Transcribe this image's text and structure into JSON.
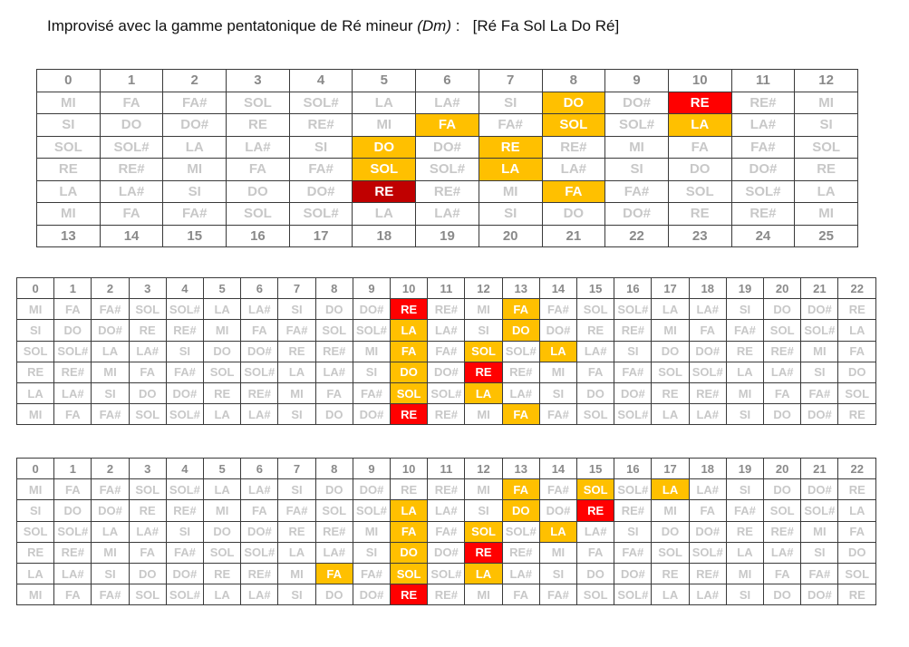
{
  "title": {
    "main": "Improvisé avec la gamme pentatonique de Ré mineur ",
    "key": "(Dm)",
    "sep": " :",
    "notes": "[Ré Fa Sol La Do Ré]"
  },
  "colors": {
    "highlight": "#ffc000",
    "root": "#ff0000",
    "dark_root": "#c00000",
    "inactive_text": "#c8c8c8",
    "number_text": "#8a8a8a"
  },
  "boards": [
    {
      "rows": [
        [
          "0",
          "1",
          "2",
          "3",
          "4",
          "5",
          "6",
          "7",
          "8",
          "9",
          "10",
          "11",
          "12"
        ],
        [
          "MI",
          "FA",
          "FA#",
          "SOL",
          "SOL#",
          "LA",
          "LA#",
          "SI",
          "DO",
          "DO#",
          "RE",
          "RE#",
          "MI"
        ],
        [
          "SI",
          "DO",
          "DO#",
          "RE",
          "RE#",
          "MI",
          "FA",
          "FA#",
          "SOL",
          "SOL#",
          "LA",
          "LA#",
          "SI"
        ],
        [
          "SOL",
          "SOL#",
          "LA",
          "LA#",
          "SI",
          "DO",
          "DO#",
          "RE",
          "RE#",
          "MI",
          "FA",
          "FA#",
          "SOL"
        ],
        [
          "RE",
          "RE#",
          "MI",
          "FA",
          "FA#",
          "SOL",
          "SOL#",
          "LA",
          "LA#",
          "SI",
          "DO",
          "DO#",
          "RE"
        ],
        [
          "LA",
          "LA#",
          "SI",
          "DO",
          "DO#",
          "RE",
          "RE#",
          "MI",
          "FA",
          "FA#",
          "SOL",
          "SOL#",
          "LA"
        ],
        [
          "MI",
          "FA",
          "FA#",
          "SOL",
          "SOL#",
          "LA",
          "LA#",
          "SI",
          "DO",
          "DO#",
          "RE",
          "RE#",
          "MI"
        ],
        [
          "13",
          "14",
          "15",
          "16",
          "17",
          "18",
          "19",
          "20",
          "21",
          "22",
          "23",
          "24",
          "25"
        ]
      ],
      "styles": [
        "nnnnnnnnnnnnn",
        "........h.r..",
        "......h.h.h..",
        ".....h.h.....",
        ".....h.h.....",
        ".....d..h....",
        ".............",
        "nnnnnnnnnnnnn"
      ]
    },
    {
      "rows": [
        [
          "0",
          "1",
          "2",
          "3",
          "4",
          "5",
          "6",
          "7",
          "8",
          "9",
          "10",
          "11",
          "12",
          "13",
          "14",
          "15",
          "16",
          "17",
          "18",
          "19",
          "20",
          "21",
          "22"
        ],
        [
          "MI",
          "FA",
          "FA#",
          "SOL",
          "SOL#",
          "LA",
          "LA#",
          "SI",
          "DO",
          "DO#",
          "RE",
          "RE#",
          "MI",
          "FA",
          "FA#",
          "SOL",
          "SOL#",
          "LA",
          "LA#",
          "SI",
          "DO",
          "DO#",
          "RE"
        ],
        [
          "SI",
          "DO",
          "DO#",
          "RE",
          "RE#",
          "MI",
          "FA",
          "FA#",
          "SOL",
          "SOL#",
          "LA",
          "LA#",
          "SI",
          "DO",
          "DO#",
          "RE",
          "RE#",
          "MI",
          "FA",
          "FA#",
          "SOL",
          "SOL#",
          "LA"
        ],
        [
          "SOL",
          "SOL#",
          "LA",
          "LA#",
          "SI",
          "DO",
          "DO#",
          "RE",
          "RE#",
          "MI",
          "FA",
          "FA#",
          "SOL",
          "SOL#",
          "LA",
          "LA#",
          "SI",
          "DO",
          "DO#",
          "RE",
          "RE#",
          "MI",
          "FA"
        ],
        [
          "RE",
          "RE#",
          "MI",
          "FA",
          "FA#",
          "SOL",
          "SOL#",
          "LA",
          "LA#",
          "SI",
          "DO",
          "DO#",
          "RE",
          "RE#",
          "MI",
          "FA",
          "FA#",
          "SOL",
          "SOL#",
          "LA",
          "LA#",
          "SI",
          "DO"
        ],
        [
          "LA",
          "LA#",
          "SI",
          "DO",
          "DO#",
          "RE",
          "RE#",
          "MI",
          "FA",
          "FA#",
          "SOL",
          "SOL#",
          "LA",
          "LA#",
          "SI",
          "DO",
          "DO#",
          "RE",
          "RE#",
          "MI",
          "FA",
          "FA#",
          "SOL"
        ],
        [
          "MI",
          "FA",
          "FA#",
          "SOL",
          "SOL#",
          "LA",
          "LA#",
          "SI",
          "DO",
          "DO#",
          "RE",
          "RE#",
          "MI",
          "FA",
          "FA#",
          "SOL",
          "SOL#",
          "LA",
          "LA#",
          "SI",
          "DO",
          "DO#",
          "RE"
        ]
      ],
      "styles": [
        "nnnnnnnnnnnnnnnnnnnnnnn",
        "..........r..h.........",
        "..........h..h.........",
        "..........h.h.h........",
        "..........h.r..........",
        "..........h.h..........",
        "..........r..h........."
      ]
    },
    {
      "rows": [
        [
          "0",
          "1",
          "2",
          "3",
          "4",
          "5",
          "6",
          "7",
          "8",
          "9",
          "10",
          "11",
          "12",
          "13",
          "14",
          "15",
          "16",
          "17",
          "18",
          "19",
          "20",
          "21",
          "22"
        ],
        [
          "MI",
          "FA",
          "FA#",
          "SOL",
          "SOL#",
          "LA",
          "LA#",
          "SI",
          "DO",
          "DO#",
          "RE",
          "RE#",
          "MI",
          "FA",
          "FA#",
          "SOL",
          "SOL#",
          "LA",
          "LA#",
          "SI",
          "DO",
          "DO#",
          "RE"
        ],
        [
          "SI",
          "DO",
          "DO#",
          "RE",
          "RE#",
          "MI",
          "FA",
          "FA#",
          "SOL",
          "SOL#",
          "LA",
          "LA#",
          "SI",
          "DO",
          "DO#",
          "RE",
          "RE#",
          "MI",
          "FA",
          "FA#",
          "SOL",
          "SOL#",
          "LA"
        ],
        [
          "SOL",
          "SOL#",
          "LA",
          "LA#",
          "SI",
          "DO",
          "DO#",
          "RE",
          "RE#",
          "MI",
          "FA",
          "FA#",
          "SOL",
          "SOL#",
          "LA",
          "LA#",
          "SI",
          "DO",
          "DO#",
          "RE",
          "RE#",
          "MI",
          "FA"
        ],
        [
          "RE",
          "RE#",
          "MI",
          "FA",
          "FA#",
          "SOL",
          "SOL#",
          "LA",
          "LA#",
          "SI",
          "DO",
          "DO#",
          "RE",
          "RE#",
          "MI",
          "FA",
          "FA#",
          "SOL",
          "SOL#",
          "LA",
          "LA#",
          "SI",
          "DO"
        ],
        [
          "LA",
          "LA#",
          "SI",
          "DO",
          "DO#",
          "RE",
          "RE#",
          "MI",
          "FA",
          "FA#",
          "SOL",
          "SOL#",
          "LA",
          "LA#",
          "SI",
          "DO",
          "DO#",
          "RE",
          "RE#",
          "MI",
          "FA",
          "FA#",
          "SOL"
        ],
        [
          "MI",
          "FA",
          "FA#",
          "SOL",
          "SOL#",
          "LA",
          "LA#",
          "SI",
          "DO",
          "DO#",
          "RE",
          "RE#",
          "MI",
          "FA",
          "FA#",
          "SOL",
          "SOL#",
          "LA",
          "LA#",
          "SI",
          "DO",
          "DO#",
          "RE"
        ]
      ],
      "styles": [
        "nnnnnnnnnnnnnnnnnnnnnnn",
        ".............h.h.h.....",
        "..........h..h.r.......",
        "..........h.h.h........",
        "..........h.r..........",
        "........h.h.h..........",
        "..........r............"
      ]
    }
  ]
}
